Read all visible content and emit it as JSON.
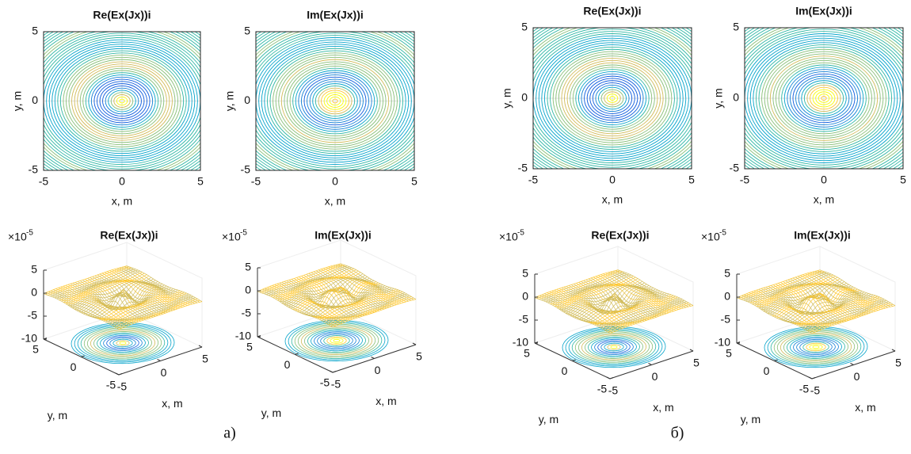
{
  "chart_data": [
    {
      "type": "contour",
      "title": "Re(Ex(Jx))i",
      "xlabel": "x, m",
      "ylabel": "y, m",
      "xlim": [
        -5,
        5
      ],
      "ylim": [
        -5,
        5
      ],
      "xticks": [
        -5,
        0,
        5
      ],
      "yticks": [
        -5,
        0,
        5
      ],
      "grid": true
    },
    {
      "type": "contour",
      "title": "Im(Ex(Jx))i",
      "xlabel": "x, m",
      "ylabel": "y, m",
      "xlim": [
        -5,
        5
      ],
      "ylim": [
        -5,
        5
      ],
      "xticks": [
        -5,
        0,
        5
      ],
      "yticks": [
        -5,
        0,
        5
      ],
      "grid": true
    },
    {
      "type": "surface3d",
      "title": "Re(Ex(Jx))i",
      "xlabel": "x, m",
      "ylabel": "y, m",
      "xlim": [
        -5,
        5
      ],
      "ylim": [
        -5,
        5
      ],
      "zlim": [
        -10,
        5
      ],
      "xticks": [
        -5,
        0,
        5
      ],
      "yticks": [
        -5,
        0,
        5
      ],
      "zticks": [
        -10,
        -5,
        0,
        5
      ],
      "z_scale_base": "×10",
      "z_scale_exponent": "-5"
    },
    {
      "type": "surface3d",
      "title": "Im(Ex(Jx))i",
      "xlabel": "x, m",
      "ylabel": "y, m",
      "xlim": [
        -5,
        5
      ],
      "ylim": [
        -5,
        5
      ],
      "zlim": [
        -10,
        5
      ],
      "xticks": [
        -5,
        0,
        5
      ],
      "yticks": [
        -5,
        0,
        5
      ],
      "zticks": [
        -10,
        -5,
        0,
        5
      ],
      "z_scale_base": "×10",
      "z_scale_exponent": "-5"
    },
    {
      "type": "contour",
      "title": "Re(Ex(Jx))i",
      "xlabel": "x, m",
      "ylabel": "y, m",
      "xlim": [
        -5,
        5
      ],
      "ylim": [
        -5,
        5
      ],
      "xticks": [
        -5,
        0,
        5
      ],
      "yticks": [
        -5,
        0,
        5
      ],
      "grid": true
    },
    {
      "type": "contour",
      "title": "Im(Ex(Jx))i",
      "xlabel": "x, m",
      "ylabel": "y, m",
      "xlim": [
        -5,
        5
      ],
      "ylim": [
        -5,
        5
      ],
      "xticks": [
        -5,
        0,
        5
      ],
      "yticks": [
        -5,
        0,
        5
      ],
      "grid": true
    },
    {
      "type": "surface3d",
      "title": "Re(Ex(Jx))i",
      "xlabel": "x, m",
      "ylabel": "y, m",
      "xlim": [
        -5,
        5
      ],
      "ylim": [
        -5,
        5
      ],
      "zlim": [
        -10,
        5
      ],
      "xticks": [
        -5,
        0,
        5
      ],
      "yticks": [
        -5,
        0,
        5
      ],
      "zticks": [
        -10,
        -5,
        0,
        5
      ],
      "z_scale_base": "×10",
      "z_scale_exponent": "-5"
    },
    {
      "type": "surface3d",
      "title": "Im(Ex(Jx))i",
      "xlabel": "x, m",
      "ylabel": "y, m",
      "xlim": [
        -5,
        5
      ],
      "ylim": [
        -5,
        5
      ],
      "zlim": [
        -10,
        5
      ],
      "xticks": [
        -5,
        0,
        5
      ],
      "yticks": [
        -5,
        0,
        5
      ],
      "zticks": [
        -10,
        -5,
        0,
        5
      ],
      "z_scale_base": "×10",
      "z_scale_exponent": "-5"
    }
  ],
  "captions": [
    "а)",
    "б)"
  ]
}
